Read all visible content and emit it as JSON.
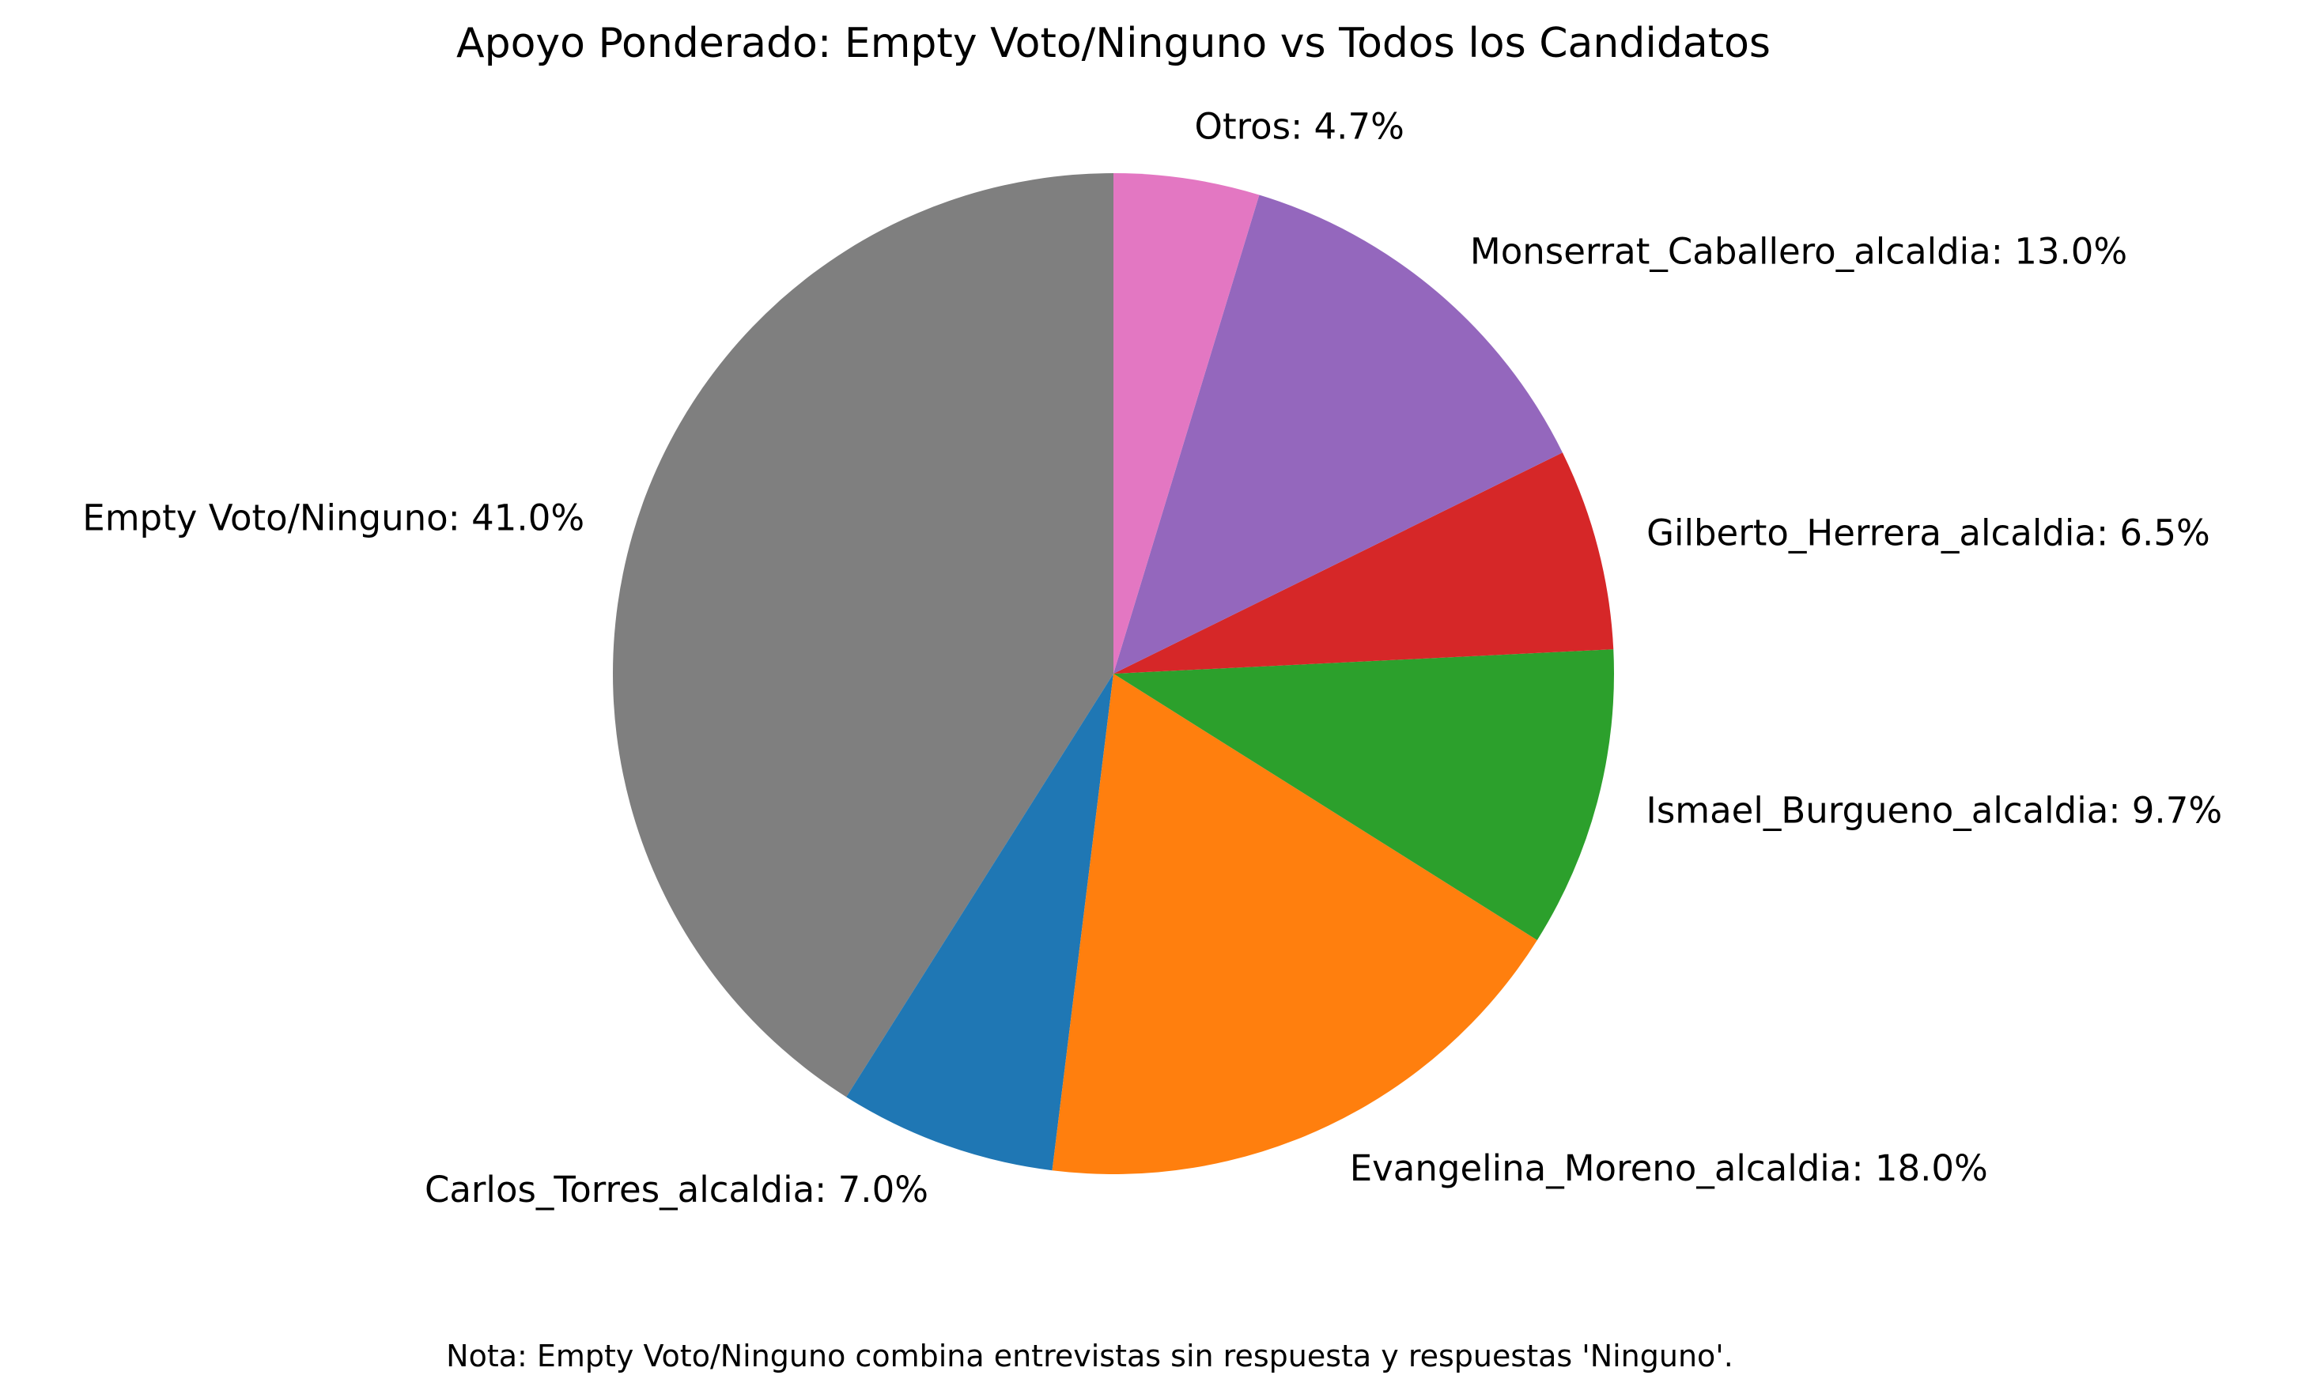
{
  "chart_data": {
    "type": "pie",
    "title": "Apoyo Ponderado: Empty Voto/Ninguno vs Todos los Candidatos",
    "note": "Nota: Empty Voto/Ninguno combina entrevistas sin respuesta y respuestas 'Ninguno'.",
    "start_angle_deg": 90,
    "direction": "counterclockwise",
    "slices": [
      {
        "name": "Empty Voto/Ninguno",
        "label": "Empty Voto/Ninguno: 41.0%",
        "value": 41.0,
        "color": "#7f7f7f"
      },
      {
        "name": "Carlos_Torres_alcaldia",
        "label": "Carlos_Torres_alcaldia: 7.0%",
        "value": 7.0,
        "color": "#1f77b4"
      },
      {
        "name": "Evangelina_Moreno_alcaldia",
        "label": "Evangelina_Moreno_alcaldia: 18.0%",
        "value": 18.0,
        "color": "#ff7f0e"
      },
      {
        "name": "Ismael_Burgueno_alcaldia",
        "label": "Ismael_Burgueno_alcaldia: 9.7%",
        "value": 9.7,
        "color": "#2ca02c"
      },
      {
        "name": "Gilberto_Herrera_alcaldia",
        "label": "Gilberto_Herrera_alcaldia: 6.5%",
        "value": 6.5,
        "color": "#d62728"
      },
      {
        "name": "Monserrat_Caballero_alcaldia",
        "label": "Monserrat_Caballero_alcaldia: 13.0%",
        "value": 13.0,
        "color": "#9467bd"
      },
      {
        "name": "Otros",
        "label": "Otros: 4.7%",
        "value": 4.7,
        "color": "#e377c2"
      }
    ]
  }
}
